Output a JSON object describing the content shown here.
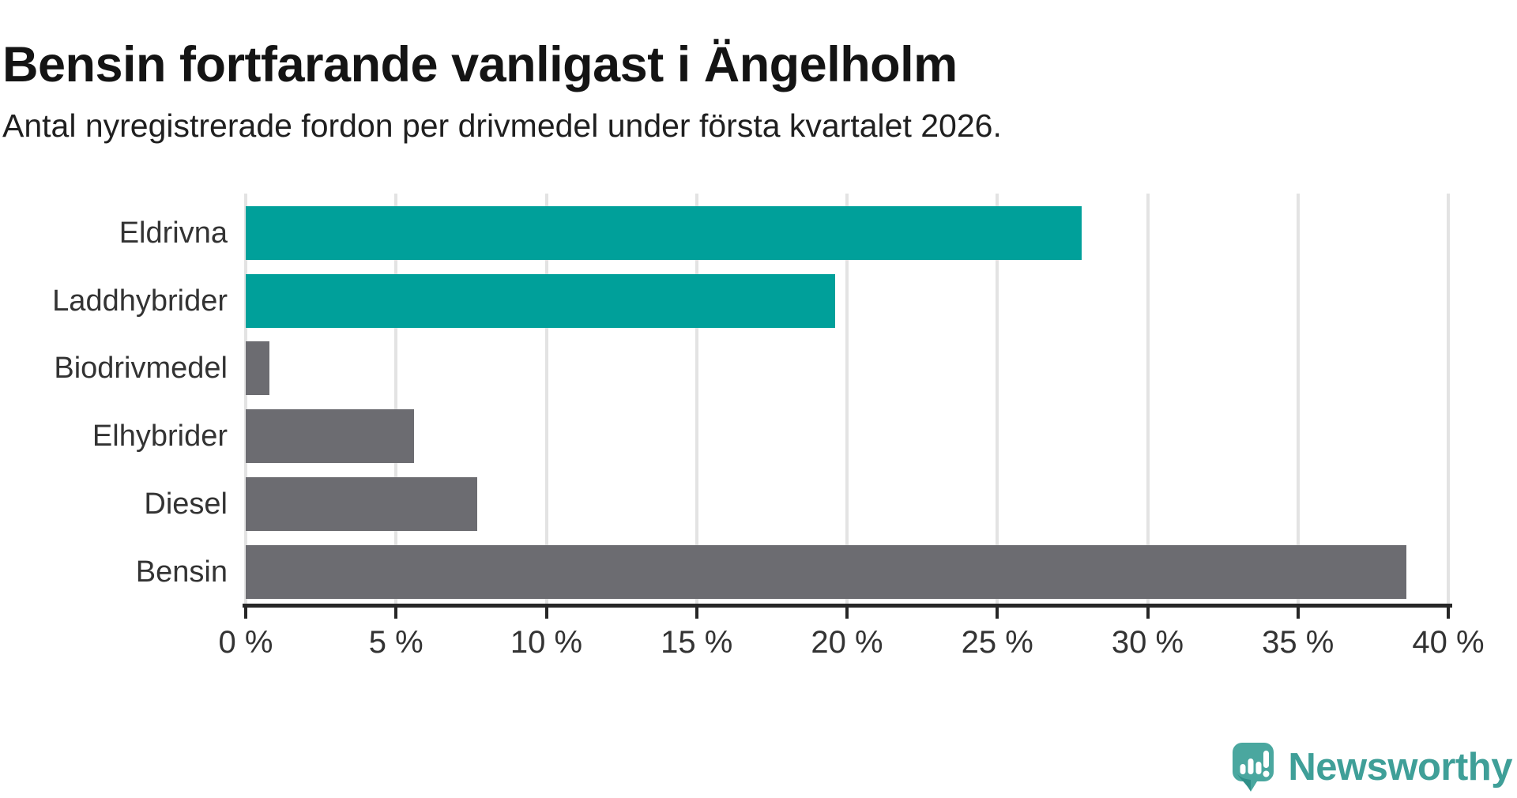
{
  "header": {
    "title": "Bensin fortfarande vanligast i Ängelholm",
    "subtitle": "Antal nyregistrerade fordon per drivmedel under första kvartalet 2026."
  },
  "chart_data": {
    "type": "bar",
    "orientation": "horizontal",
    "title": "Bensin fortfarande vanligast i Ängelholm",
    "subtitle": "Antal nyregistrerade fordon per drivmedel under första kvartalet 2026.",
    "categories": [
      "Eldrivna",
      "Laddhybrider",
      "Biodrivmedel",
      "Elhybrider",
      "Diesel",
      "Bensin"
    ],
    "values": [
      27.8,
      19.6,
      0.8,
      5.6,
      7.7,
      38.6
    ],
    "unit": "%",
    "bar_colors": [
      "#00a09a",
      "#00a09a",
      "#6c6c71",
      "#6c6c71",
      "#6c6c71",
      "#6c6c71"
    ],
    "xlim": [
      0,
      40
    ],
    "x_ticks": [
      0,
      5,
      10,
      15,
      20,
      25,
      30,
      35,
      40
    ],
    "x_tick_labels": [
      "0 %",
      "5 %",
      "10 %",
      "15 %",
      "20 %",
      "25 %",
      "30 %",
      "35 %",
      "40 %"
    ],
    "grid": true,
    "legend": "none",
    "colors": {
      "highlight": "#00a09a",
      "default": "#6c6c71",
      "grid": "#e3e3e3",
      "axis": "#262626",
      "label": "#333333"
    }
  },
  "footer": {
    "brand": "Newsworthy",
    "brand_color": "#3f9f98",
    "logo_icon": "speech-bubble-bar-chart-icon",
    "logo_icon_color": "#4aa79f"
  }
}
